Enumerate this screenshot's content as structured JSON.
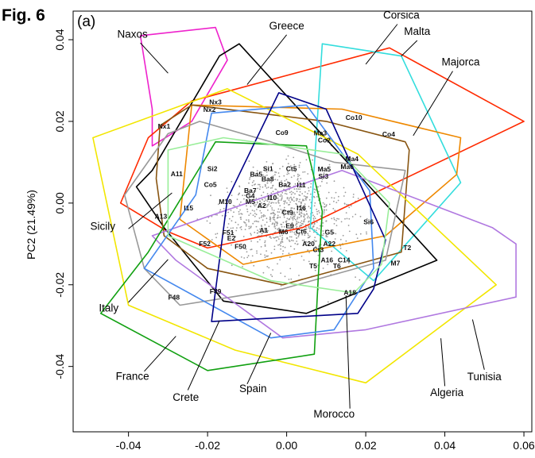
{
  "figure": {
    "label": "Fig. 6",
    "panel": "(a)"
  },
  "chart_data": {
    "type": "scatter",
    "title": "",
    "xlabel": "",
    "ylabel": "PC2 (21.49%)",
    "xlim": [
      -0.054,
      0.062
    ],
    "ylim": [
      -0.056,
      0.047
    ],
    "xticks": [
      "-0.04",
      "-0.02",
      "0.00",
      "0.02",
      "0.04",
      "0.06"
    ],
    "yticks": [
      "-0.04",
      "-0.02",
      "0.00",
      "0.02",
      "0.04"
    ],
    "grid": false,
    "hulls": [
      {
        "name": "Naxos",
        "color": "#ee22cc",
        "points": [
          [
            -0.037,
            0.041
          ],
          [
            -0.018,
            0.043
          ],
          [
            -0.015,
            0.035
          ],
          [
            -0.024,
            0.02
          ],
          [
            -0.034,
            0.014
          ],
          [
            -0.034,
            0.023
          ]
        ]
      },
      {
        "name": "Corsica",
        "color": "#ff2a00",
        "points": [
          [
            -0.042,
            0.0
          ],
          [
            -0.035,
            0.016
          ],
          [
            -0.024,
            0.025
          ],
          [
            0.026,
            0.038
          ],
          [
            0.06,
            0.02
          ],
          [
            0.004,
            -0.006
          ],
          [
            -0.02,
            -0.011
          ],
          [
            -0.03,
            -0.007
          ]
        ]
      },
      {
        "name": "Malta",
        "color": "#33dddd",
        "points": [
          [
            0.009,
            0.039
          ],
          [
            0.029,
            0.036
          ],
          [
            0.044,
            0.005
          ],
          [
            0.022,
            -0.019
          ],
          [
            0.006,
            -0.006
          ]
        ]
      },
      {
        "name": "Majorca",
        "color": "#ee8800",
        "points": [
          [
            -0.024,
            0.024
          ],
          [
            0.014,
            0.023
          ],
          [
            0.044,
            0.016
          ],
          [
            0.043,
            0.007
          ],
          [
            0.025,
            -0.008
          ],
          [
            -0.011,
            -0.015
          ],
          [
            -0.027,
            -0.004
          ]
        ]
      },
      {
        "name": "Greece",
        "color": "#000000",
        "points": [
          [
            -0.034,
            0.008
          ],
          [
            -0.017,
            0.036
          ],
          [
            -0.012,
            0.039
          ],
          [
            0.038,
            -0.014
          ],
          [
            0.005,
            -0.027
          ],
          [
            -0.016,
            -0.024
          ],
          [
            -0.031,
            -0.006
          ],
          [
            -0.038,
            0.004
          ]
        ]
      },
      {
        "name": "Sicily",
        "color": "#885511",
        "points": [
          [
            -0.032,
            0.019
          ],
          [
            -0.024,
            0.024
          ],
          [
            0.01,
            0.02
          ],
          [
            0.03,
            0.015
          ],
          [
            0.031,
            0.013
          ],
          [
            0.029,
            -0.012
          ],
          [
            -0.001,
            -0.02
          ],
          [
            -0.02,
            -0.016
          ],
          [
            -0.031,
            -0.008
          ],
          [
            -0.033,
            0.006
          ]
        ]
      },
      {
        "name": "Italy",
        "color": "#999999",
        "points": [
          [
            -0.041,
            0.002
          ],
          [
            -0.03,
            0.017
          ],
          [
            -0.022,
            0.02
          ],
          [
            -0.004,
            0.015
          ],
          [
            0.012,
            0.01
          ],
          [
            0.03,
            0.008
          ],
          [
            0.025,
            -0.014
          ],
          [
            -0.001,
            -0.021
          ],
          [
            -0.027,
            -0.025
          ],
          [
            -0.036,
            -0.016
          ]
        ]
      },
      {
        "name": "Algeria",
        "color": "#f2e600",
        "points": [
          [
            -0.049,
            0.016
          ],
          [
            -0.015,
            0.028
          ],
          [
            0.018,
            0.012
          ],
          [
            0.053,
            -0.02
          ],
          [
            0.02,
            -0.044
          ],
          [
            -0.013,
            -0.036
          ],
          [
            -0.04,
            -0.025
          ]
        ]
      },
      {
        "name": "Tunisia",
        "color": "#b078e0",
        "points": [
          [
            0.014,
            0.008
          ],
          [
            0.052,
            -0.006
          ],
          [
            0.058,
            -0.01
          ],
          [
            0.058,
            -0.023
          ],
          [
            0.02,
            -0.031
          ],
          [
            -0.001,
            -0.033
          ],
          [
            -0.028,
            -0.014
          ],
          [
            -0.034,
            -0.008
          ]
        ]
      },
      {
        "name": "France",
        "color": "#11a011",
        "points": [
          [
            -0.018,
            0.015
          ],
          [
            0.005,
            0.014
          ],
          [
            0.009,
            -0.002
          ],
          [
            0.008,
            -0.018
          ],
          [
            0.007,
            -0.037
          ],
          [
            -0.02,
            -0.041
          ],
          [
            -0.047,
            -0.027
          ],
          [
            -0.035,
            -0.012
          ]
        ]
      },
      {
        "name": "Spain",
        "color": "#4488ee",
        "points": [
          [
            -0.019,
            0.022
          ],
          [
            0.005,
            0.024
          ],
          [
            0.021,
            0.003
          ],
          [
            0.022,
            -0.016
          ],
          [
            0.012,
            -0.031
          ],
          [
            -0.004,
            -0.033
          ],
          [
            -0.036,
            -0.016
          ],
          [
            -0.023,
            0.002
          ]
        ]
      },
      {
        "name": "Crete",
        "color": "#000088",
        "points": [
          [
            -0.002,
            0.027
          ],
          [
            0.01,
            0.023
          ],
          [
            0.025,
            -0.009
          ],
          [
            0.022,
            -0.021
          ],
          [
            0.018,
            -0.027
          ],
          [
            -0.019,
            -0.029
          ],
          [
            -0.015,
            0.001
          ]
        ]
      },
      {
        "name": "Morocco",
        "color": "#99ee99",
        "points": [
          [
            -0.03,
            0.013
          ],
          [
            -0.016,
            0.016
          ],
          [
            0.014,
            0.012
          ],
          [
            0.026,
            0.0
          ],
          [
            0.024,
            -0.015
          ],
          [
            0.017,
            -0.022
          ],
          [
            -0.004,
            -0.019
          ],
          [
            -0.03,
            -0.008
          ]
        ]
      }
    ],
    "labels": [
      {
        "text": "Naxos",
        "x": -0.039,
        "y": 0.0405,
        "lx": -0.037,
        "ly": 0.0392,
        "px": -0.03,
        "py": 0.0318
      },
      {
        "text": "Greece",
        "x": 0.0,
        "y": 0.0425,
        "lx": 0.0,
        "ly": 0.0412,
        "px": -0.01,
        "py": 0.029
      },
      {
        "text": "Corsica",
        "x": 0.029,
        "y": 0.0452,
        "lx": 0.028,
        "ly": 0.0438,
        "px": 0.02,
        "py": 0.034
      },
      {
        "text": "Malta",
        "x": 0.033,
        "y": 0.0412,
        "lx": 0.033,
        "ly": 0.0398,
        "px": 0.029,
        "py": 0.036
      },
      {
        "text": "Majorca",
        "x": 0.044,
        "y": 0.0337,
        "lx": 0.042,
        "ly": 0.0323,
        "px": 0.032,
        "py": 0.0165
      },
      {
        "text": "Sicily",
        "x": -0.0465,
        "y": -0.0065,
        "lx": -0.04,
        "ly": -0.0063,
        "px": -0.029,
        "py": 0.0025
      },
      {
        "text": "Italy",
        "x": -0.045,
        "y": -0.0266,
        "lx": -0.04,
        "ly": -0.0243,
        "px": -0.03,
        "py": -0.0138
      },
      {
        "text": "France",
        "x": -0.039,
        "y": -0.0433,
        "lx": -0.036,
        "ly": -0.0412,
        "px": -0.028,
        "py": -0.0326
      },
      {
        "text": "Crete",
        "x": -0.0255,
        "y": -0.0484,
        "lx": -0.025,
        "ly": -0.0458,
        "px": -0.017,
        "py": -0.0288
      },
      {
        "text": "Spain",
        "x": -0.0085,
        "y": -0.0463,
        "lx": -0.01,
        "ly": -0.0443,
        "px": -0.004,
        "py": -0.0318
      },
      {
        "text": "Morocco",
        "x": 0.012,
        "y": -0.0525,
        "lx": 0.016,
        "ly": -0.0503,
        "px": 0.015,
        "py": -0.0226
      },
      {
        "text": "Algeria",
        "x": 0.0405,
        "y": -0.0473,
        "lx": 0.04,
        "ly": -0.0448,
        "px": 0.039,
        "py": -0.0331
      },
      {
        "text": "Tunisia",
        "x": 0.05,
        "y": -0.0434,
        "lx": 0.05,
        "ly": -0.0408,
        "px": 0.047,
        "py": -0.0285
      }
    ],
    "samples": [
      {
        "id": "Nx3",
        "x": -0.018,
        "y": 0.0242
      },
      {
        "id": "Nx2",
        "x": -0.0195,
        "y": 0.0223
      },
      {
        "id": "Nx1",
        "x": -0.031,
        "y": 0.0182
      },
      {
        "id": "Co10",
        "x": 0.017,
        "y": 0.0204
      },
      {
        "id": "Co4",
        "x": 0.0258,
        "y": 0.0163
      },
      {
        "id": "Ma3",
        "x": 0.0085,
        "y": 0.0166
      },
      {
        "id": "Co2",
        "x": 0.0095,
        "y": 0.0148
      },
      {
        "id": "Co9",
        "x": -0.0012,
        "y": 0.0167
      },
      {
        "id": "Ma4",
        "x": 0.0165,
        "y": 0.0103
      },
      {
        "id": "Ma6",
        "x": 0.0153,
        "y": 0.0083
      },
      {
        "id": "A11",
        "x": -0.0278,
        "y": 0.0066
      },
      {
        "id": "Si2",
        "x": -0.0188,
        "y": 0.0078
      },
      {
        "id": "Si1",
        "x": -0.0047,
        "y": 0.0078
      },
      {
        "id": "Ct5",
        "x": 0.0012,
        "y": 0.0078
      },
      {
        "id": "Ma5",
        "x": 0.0095,
        "y": 0.0077
      },
      {
        "id": "Ba5",
        "x": -0.0077,
        "y": 0.0065
      },
      {
        "id": "Ba8",
        "x": -0.0048,
        "y": 0.0053
      },
      {
        "id": "Si3",
        "x": 0.0093,
        "y": 0.006
      },
      {
        "id": "Ba2",
        "x": -0.0005,
        "y": 0.004
      },
      {
        "id": "I11",
        "x": 0.0037,
        "y": 0.0039
      },
      {
        "id": "Co5",
        "x": -0.0193,
        "y": 0.004
      },
      {
        "id": "Ba7",
        "x": -0.0092,
        "y": 0.0025
      },
      {
        "id": "G4",
        "x": -0.0092,
        "y": 0.0012
      },
      {
        "id": "I10",
        "x": -0.0037,
        "y": 0.0007
      },
      {
        "id": "M10",
        "x": -0.0155,
        "y": -0.0002
      },
      {
        "id": "M5",
        "x": -0.0092,
        "y": -0.0002
      },
      {
        "id": "A2",
        "x": -0.0063,
        "y": -0.0012
      },
      {
        "id": "I15",
        "x": -0.0248,
        "y": -0.0018
      },
      {
        "id": "I16",
        "x": 0.0037,
        "y": -0.0018
      },
      {
        "id": "Ct9",
        "x": 0.0002,
        "y": -0.0028
      },
      {
        "id": "A13",
        "x": -0.0318,
        "y": -0.0038
      },
      {
        "id": "Si6",
        "x": 0.0207,
        "y": -0.0052
      },
      {
        "id": "E9",
        "x": 0.0008,
        "y": -0.0062
      },
      {
        "id": "A1",
        "x": -0.0058,
        "y": -0.0072
      },
      {
        "id": "Ct6",
        "x": 0.0037,
        "y": -0.0075
      },
      {
        "id": "M6",
        "x": -0.0008,
        "y": -0.0076
      },
      {
        "id": "F51",
        "x": -0.0148,
        "y": -0.0078
      },
      {
        "id": "E2",
        "x": -0.014,
        "y": -0.0092
      },
      {
        "id": "G5",
        "x": 0.0108,
        "y": -0.0077
      },
      {
        "id": "A20",
        "x": 0.0055,
        "y": -0.0105
      },
      {
        "id": "A22",
        "x": 0.0108,
        "y": -0.0105
      },
      {
        "id": "F52",
        "x": -0.0207,
        "y": -0.0105
      },
      {
        "id": "F50",
        "x": -0.0117,
        "y": -0.0112
      },
      {
        "id": "Ct3",
        "x": 0.008,
        "y": -0.012
      },
      {
        "id": "T2",
        "x": 0.0305,
        "y": -0.0115
      },
      {
        "id": "A16",
        "x": 0.0102,
        "y": -0.0145
      },
      {
        "id": "C14",
        "x": 0.0145,
        "y": -0.0145
      },
      {
        "id": "T5",
        "x": 0.0067,
        "y": -0.016
      },
      {
        "id": "T6",
        "x": 0.0127,
        "y": -0.016
      },
      {
        "id": "M7",
        "x": 0.0275,
        "y": -0.0153
      },
      {
        "id": "F48",
        "x": -0.0285,
        "y": -0.0236
      },
      {
        "id": "F49",
        "x": -0.018,
        "y": -0.0222
      },
      {
        "id": "A18",
        "x": 0.016,
        "y": -0.0225
      }
    ],
    "background_points": {
      "count": 900,
      "seed": 7
    }
  }
}
